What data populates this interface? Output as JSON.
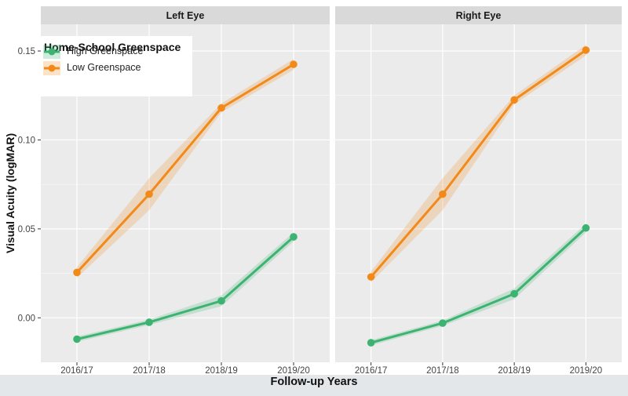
{
  "chart_data": {
    "type": "line",
    "xlabel": "Follow-up Years",
    "ylabel": "Visual Acuity (logMAR)",
    "categories": [
      "2016/17",
      "2017/18",
      "2018/19",
      "2019/20"
    ],
    "ylim": [
      -0.025,
      0.165
    ],
    "yticks": [
      "0.00",
      "0.05",
      "0.10",
      "0.15"
    ],
    "ytick_values": [
      0.0,
      0.05,
      0.1,
      0.15
    ],
    "grid": true,
    "legend": {
      "title": "Home-School Greenspace",
      "position": "top-left",
      "entries": [
        "High Greenspace",
        "Low Greenspace"
      ]
    },
    "panels": [
      {
        "title": "Left Eye",
        "series": [
          {
            "name": "High Greenspace",
            "values": [
              -0.012,
              -0.0025,
              0.0095,
              0.0455
            ],
            "lower": [
              -0.0135,
              -0.004,
              0.0065,
              0.043
            ],
            "upper": [
              -0.0105,
              -0.001,
              0.0125,
              0.048
            ]
          },
          {
            "name": "Low Greenspace",
            "values": [
              0.0255,
              0.0695,
              0.118,
              0.1425
            ],
            "lower": [
              0.0225,
              0.0605,
              0.1155,
              0.1395
            ],
            "upper": [
              0.0285,
              0.0785,
              0.1205,
              0.1455
            ]
          }
        ]
      },
      {
        "title": "Right Eye",
        "series": [
          {
            "name": "High Greenspace",
            "values": [
              -0.014,
              -0.003,
              0.0135,
              0.0505
            ],
            "lower": [
              -0.0155,
              -0.0045,
              0.0105,
              0.048
            ],
            "upper": [
              -0.0125,
              -0.0015,
              0.0165,
              0.053
            ]
          },
          {
            "name": "Low Greenspace",
            "values": [
              0.023,
              0.0695,
              0.1225,
              0.1505
            ],
            "lower": [
              0.02,
              0.0605,
              0.12,
              0.1475
            ],
            "upper": [
              0.026,
              0.0785,
              0.125,
              0.1535
            ]
          }
        ]
      }
    ]
  },
  "colors": {
    "High Greenspace": "#3cb371",
    "Low Greenspace": "#f28a1a",
    "panel_bg": "#ebebeb",
    "strip_bg": "#d9d9d9",
    "grid": "#ffffff"
  }
}
